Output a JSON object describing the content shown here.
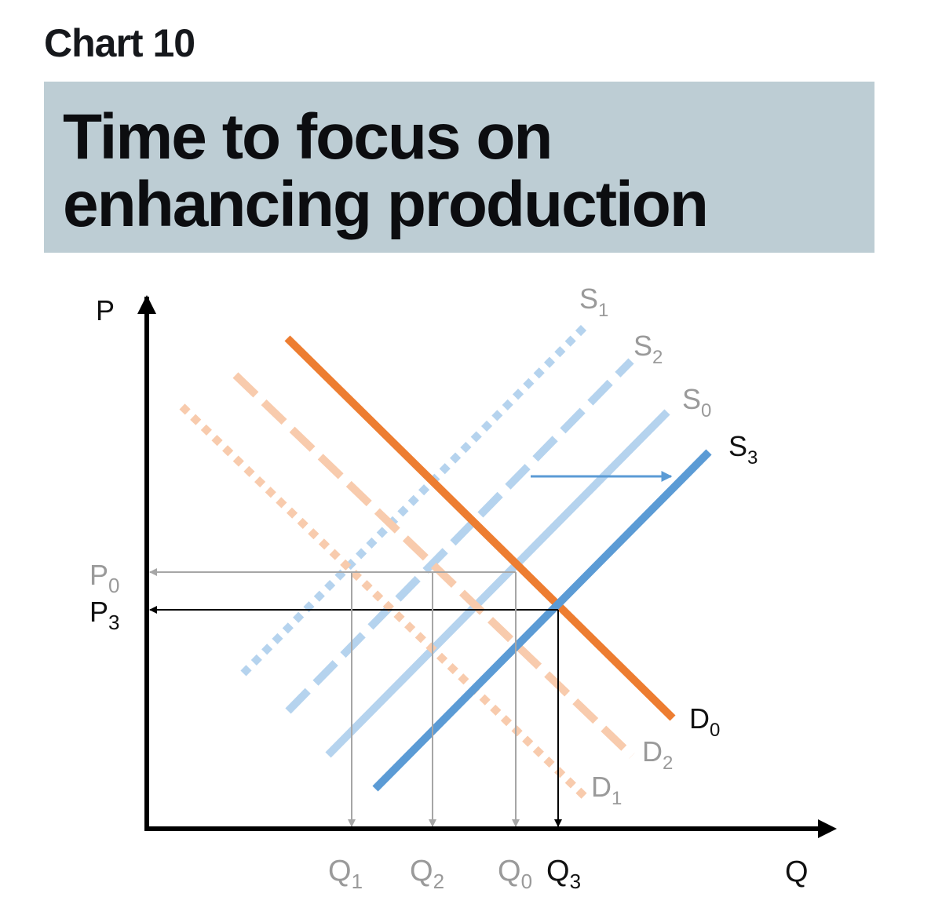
{
  "header": {
    "chart_number": "Chart 10",
    "title": "Time to focus on enhancing production"
  },
  "axes": {
    "y_label": "P",
    "x_label": "Q"
  },
  "price_labels": [
    {
      "main": "P",
      "sub": "0",
      "tone": "faded"
    },
    {
      "main": "P",
      "sub": "3",
      "tone": "dark"
    }
  ],
  "quantity_labels": [
    {
      "main": "Q",
      "sub": "1",
      "tone": "faded"
    },
    {
      "main": "Q",
      "sub": "2",
      "tone": "faded"
    },
    {
      "main": "Q",
      "sub": "0",
      "tone": "faded"
    },
    {
      "main": "Q",
      "sub": "3",
      "tone": "dark"
    }
  ],
  "curves": [
    {
      "main": "S",
      "sub": "1",
      "kind": "supply",
      "style": "dotted",
      "color": "#b5d3ee"
    },
    {
      "main": "S",
      "sub": "2",
      "kind": "supply",
      "style": "dashed",
      "color": "#b5d3ee"
    },
    {
      "main": "S",
      "sub": "0",
      "kind": "supply",
      "style": "solid",
      "color": "#b5d3ee"
    },
    {
      "main": "S",
      "sub": "3",
      "kind": "supply",
      "style": "solid",
      "color": "#5b9bd5"
    },
    {
      "main": "D",
      "sub": "0",
      "kind": "demand",
      "style": "solid",
      "color": "#ed7d31"
    },
    {
      "main": "D",
      "sub": "2",
      "kind": "demand",
      "style": "dashed",
      "color": "#f8cbad"
    },
    {
      "main": "D",
      "sub": "1",
      "kind": "demand",
      "style": "dotted",
      "color": "#f8cbad"
    }
  ],
  "colors": {
    "faded_label": "#9a9a9a",
    "dark_label": "#111111",
    "guide_faded": "#a6a6a6",
    "guide_dark": "#000000",
    "shift_arrow": "#5b9bd5",
    "title_band": "#bdcdd4"
  }
}
